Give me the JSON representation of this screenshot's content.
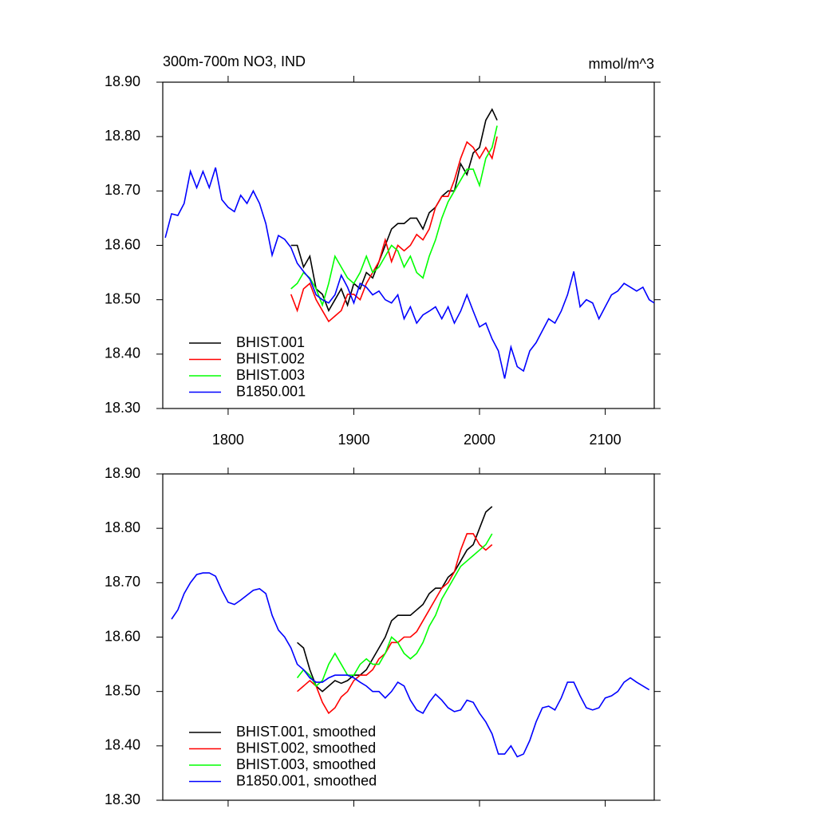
{
  "chart_data": [
    {
      "type": "line",
      "title": "300m-700m NO3, IND",
      "unit_label": "mmol/m^3",
      "xlim": [
        1748,
        2139
      ],
      "ylim": [
        18.3,
        18.9
      ],
      "xticks": [
        1800,
        1900,
        2000,
        2100
      ],
      "yticks": [
        {
          "value": 18.3,
          "label": "18.30"
        },
        {
          "value": 18.4,
          "label": "18.40"
        },
        {
          "value": 18.5,
          "label": "18.50"
        },
        {
          "value": 18.6,
          "label": "18.60"
        },
        {
          "value": 18.7,
          "label": "18.70"
        },
        {
          "value": 18.8,
          "label": "18.80"
        },
        {
          "value": 18.9,
          "label": "18.90"
        }
      ],
      "legend": "lower left",
      "series": [
        {
          "name": "BHIST.001",
          "color": "#000000",
          "x": [
            1850,
            1855,
            1860,
            1865,
            1870,
            1875,
            1880,
            1885,
            1890,
            1895,
            1900,
            1905,
            1910,
            1915,
            1920,
            1925,
            1930,
            1935,
            1940,
            1945,
            1950,
            1955,
            1960,
            1965,
            1970,
            1975,
            1980,
            1985,
            1990,
            1995,
            2000,
            2005,
            2010,
            2014
          ],
          "values": [
            18.6,
            18.6,
            18.56,
            18.58,
            18.52,
            18.51,
            18.48,
            18.5,
            18.52,
            18.49,
            18.53,
            18.52,
            18.55,
            18.54,
            18.57,
            18.6,
            18.63,
            18.64,
            18.64,
            18.65,
            18.65,
            18.63,
            18.66,
            18.67,
            18.69,
            18.7,
            18.7,
            18.75,
            18.73,
            18.77,
            18.78,
            18.83,
            18.85,
            18.83
          ]
        },
        {
          "name": "BHIST.002",
          "color": "#ff0000",
          "x": [
            1850,
            1855,
            1860,
            1865,
            1870,
            1875,
            1880,
            1885,
            1890,
            1895,
            1900,
            1905,
            1910,
            1915,
            1920,
            1925,
            1930,
            1935,
            1940,
            1945,
            1950,
            1955,
            1960,
            1965,
            1970,
            1975,
            1980,
            1985,
            1990,
            1995,
            2000,
            2005,
            2010,
            2014
          ],
          "values": [
            18.51,
            18.48,
            18.52,
            18.53,
            18.5,
            18.48,
            18.46,
            18.47,
            18.48,
            18.51,
            18.51,
            18.5,
            18.53,
            18.55,
            18.57,
            18.61,
            18.57,
            18.6,
            18.59,
            18.6,
            18.62,
            18.61,
            18.63,
            18.67,
            18.69,
            18.69,
            18.72,
            18.76,
            18.79,
            18.78,
            18.76,
            18.78,
            18.76,
            18.8
          ]
        },
        {
          "name": "BHIST.003",
          "color": "#00ff00",
          "x": [
            1850,
            1855,
            1860,
            1865,
            1870,
            1875,
            1880,
            1885,
            1890,
            1895,
            1900,
            1905,
            1910,
            1915,
            1920,
            1925,
            1930,
            1935,
            1940,
            1945,
            1950,
            1955,
            1960,
            1965,
            1970,
            1975,
            1980,
            1985,
            1990,
            1995,
            2000,
            2005,
            2010,
            2014
          ],
          "values": [
            18.52,
            18.53,
            18.55,
            18.54,
            18.52,
            18.49,
            18.53,
            18.58,
            18.56,
            18.54,
            18.53,
            18.55,
            18.58,
            18.55,
            18.56,
            18.58,
            18.6,
            18.59,
            18.56,
            18.58,
            18.55,
            18.54,
            18.58,
            18.61,
            18.65,
            18.68,
            18.7,
            18.72,
            18.74,
            18.74,
            18.71,
            18.76,
            18.78,
            18.82
          ]
        },
        {
          "name": "B1850.001",
          "color": "#0000ff",
          "x": [
            1750,
            1755,
            1760,
            1765,
            1770,
            1775,
            1780,
            1785,
            1790,
            1795,
            1800,
            1805,
            1810,
            1815,
            1820,
            1825,
            1830,
            1835,
            1840,
            1845,
            1850,
            1855,
            1860,
            1865,
            1870,
            1875,
            1880,
            1885,
            1890,
            1895,
            1900,
            1905,
            1910,
            1915,
            1920,
            1925,
            1930,
            1935,
            1940,
            1945,
            1950,
            1955,
            1960,
            1965,
            1970,
            1975,
            1980,
            1985,
            1990,
            1995,
            2000,
            2005,
            2010,
            2015,
            2020,
            2025,
            2030,
            2035,
            2040,
            2045,
            2050,
            2055,
            2060,
            2065,
            2070,
            2075,
            2080,
            2085,
            2090,
            2095,
            2100,
            2105,
            2110,
            2115,
            2120,
            2125,
            2130,
            2135,
            2139
          ],
          "values": [
            18.614,
            18.658,
            18.655,
            18.677,
            18.736,
            18.706,
            18.736,
            18.706,
            18.743,
            18.684,
            18.67,
            18.662,
            18.692,
            18.677,
            18.7,
            18.677,
            18.64,
            18.582,
            18.618,
            18.611,
            18.596,
            18.567,
            18.552,
            18.538,
            18.509,
            18.5,
            18.494,
            18.509,
            18.545,
            18.523,
            18.494,
            18.53,
            18.523,
            18.509,
            18.516,
            18.5,
            18.494,
            18.509,
            18.465,
            18.487,
            18.457,
            18.472,
            18.479,
            18.487,
            18.465,
            18.487,
            18.457,
            18.479,
            18.509,
            18.479,
            18.45,
            18.457,
            18.428,
            18.406,
            18.355,
            18.413,
            18.377,
            18.369,
            18.406,
            18.421,
            18.443,
            18.465,
            18.457,
            18.479,
            18.509,
            18.552,
            18.487,
            18.5,
            18.494,
            18.465,
            18.487,
            18.509,
            18.516,
            18.53,
            18.523,
            18.516,
            18.523,
            18.5,
            18.494
          ]
        }
      ]
    },
    {
      "type": "line",
      "xlim": [
        1748,
        2139
      ],
      "ylim": [
        18.3,
        18.9
      ],
      "xticks": [
        {
          "value": 1800,
          "label": null
        },
        {
          "value": 1900,
          "label": null
        },
        {
          "value": 2000,
          "label": null
        },
        {
          "value": 2100,
          "label": null
        }
      ],
      "yticks": [
        {
          "value": 18.3,
          "label": "18.30"
        },
        {
          "value": 18.4,
          "label": "18.40"
        },
        {
          "value": 18.5,
          "label": "18.50"
        },
        {
          "value": 18.6,
          "label": "18.60"
        },
        {
          "value": 18.7,
          "label": "18.70"
        },
        {
          "value": 18.8,
          "label": "18.80"
        },
        {
          "value": 18.9,
          "label": "18.90"
        }
      ],
      "legend": "lower left",
      "series": [
        {
          "name": "BHIST.001, smoothed",
          "color": "#000000",
          "x": [
            1855,
            1860,
            1865,
            1870,
            1875,
            1880,
            1885,
            1890,
            1895,
            1900,
            1905,
            1910,
            1915,
            1920,
            1925,
            1930,
            1935,
            1940,
            1945,
            1950,
            1955,
            1960,
            1965,
            1970,
            1975,
            1980,
            1985,
            1990,
            1995,
            2000,
            2005,
            2010
          ],
          "values": [
            18.59,
            18.58,
            18.54,
            18.51,
            18.5,
            18.51,
            18.52,
            18.515,
            18.52,
            18.53,
            18.53,
            18.54,
            18.56,
            18.58,
            18.6,
            18.63,
            18.64,
            18.64,
            18.64,
            18.65,
            18.66,
            18.68,
            18.69,
            18.69,
            18.71,
            18.72,
            18.74,
            18.76,
            18.77,
            18.8,
            18.83,
            18.84
          ]
        },
        {
          "name": "BHIST.002, smoothed",
          "color": "#ff0000",
          "x": [
            1855,
            1860,
            1865,
            1870,
            1875,
            1880,
            1885,
            1890,
            1895,
            1900,
            1905,
            1910,
            1915,
            1920,
            1925,
            1930,
            1935,
            1940,
            1945,
            1950,
            1955,
            1960,
            1965,
            1970,
            1975,
            1980,
            1985,
            1990,
            1995,
            2000,
            2005,
            2010
          ],
          "values": [
            18.5,
            18.51,
            18.52,
            18.51,
            18.48,
            18.46,
            18.47,
            18.49,
            18.5,
            18.52,
            18.53,
            18.53,
            18.54,
            18.56,
            18.57,
            18.59,
            18.59,
            18.6,
            18.6,
            18.61,
            18.63,
            18.65,
            18.67,
            18.69,
            18.7,
            18.72,
            18.76,
            18.79,
            18.79,
            18.77,
            18.76,
            18.77
          ]
        },
        {
          "name": "BHIST.003, smoothed",
          "color": "#00ff00",
          "x": [
            1855,
            1860,
            1865,
            1870,
            1875,
            1880,
            1885,
            1890,
            1895,
            1900,
            1905,
            1910,
            1915,
            1920,
            1925,
            1930,
            1935,
            1940,
            1945,
            1950,
            1955,
            1960,
            1965,
            1970,
            1975,
            1980,
            1985,
            1990,
            1995,
            2000,
            2005,
            2010
          ],
          "values": [
            18.525,
            18.54,
            18.53,
            18.51,
            18.52,
            18.55,
            18.57,
            18.55,
            18.53,
            18.53,
            18.55,
            18.56,
            18.55,
            18.55,
            18.57,
            18.6,
            18.59,
            18.57,
            18.56,
            18.57,
            18.59,
            18.62,
            18.64,
            18.67,
            18.69,
            18.71,
            18.73,
            18.74,
            18.75,
            18.76,
            18.77,
            18.79
          ]
        },
        {
          "name": "B1850.001, smoothed",
          "color": "#0000ff",
          "x": [
            1755,
            1760,
            1765,
            1770,
            1775,
            1780,
            1785,
            1790,
            1795,
            1800,
            1805,
            1810,
            1815,
            1820,
            1825,
            1830,
            1835,
            1840,
            1845,
            1850,
            1855,
            1860,
            1865,
            1870,
            1875,
            1880,
            1885,
            1890,
            1895,
            1900,
            1905,
            1910,
            1915,
            1920,
            1925,
            1930,
            1935,
            1940,
            1945,
            1950,
            1955,
            1960,
            1965,
            1970,
            1975,
            1980,
            1985,
            1990,
            1995,
            2000,
            2005,
            2010,
            2015,
            2020,
            2025,
            2030,
            2035,
            2040,
            2045,
            2050,
            2055,
            2060,
            2065,
            2070,
            2075,
            2080,
            2085,
            2090,
            2095,
            2100,
            2105,
            2110,
            2115,
            2120,
            2125,
            2130,
            2135
          ],
          "values": [
            18.633,
            18.65,
            18.68,
            18.7,
            18.715,
            18.718,
            18.718,
            18.712,
            18.686,
            18.664,
            18.66,
            18.668,
            18.677,
            18.686,
            18.689,
            18.68,
            18.64,
            18.613,
            18.6,
            18.58,
            18.55,
            18.54,
            18.525,
            18.517,
            18.517,
            18.525,
            18.53,
            18.53,
            18.53,
            18.525,
            18.517,
            18.51,
            18.5,
            18.5,
            18.488,
            18.5,
            18.517,
            18.51,
            18.484,
            18.466,
            18.46,
            18.48,
            18.495,
            18.484,
            18.47,
            18.463,
            18.466,
            18.484,
            18.48,
            18.46,
            18.444,
            18.422,
            18.385,
            18.385,
            18.4,
            18.38,
            18.385,
            18.41,
            18.444,
            18.47,
            18.473,
            18.466,
            18.488,
            18.517,
            18.517,
            18.492,
            18.47,
            18.466,
            18.47,
            18.488,
            18.492,
            18.5,
            18.517,
            18.525,
            18.517,
            18.51,
            18.503
          ]
        }
      ]
    }
  ]
}
